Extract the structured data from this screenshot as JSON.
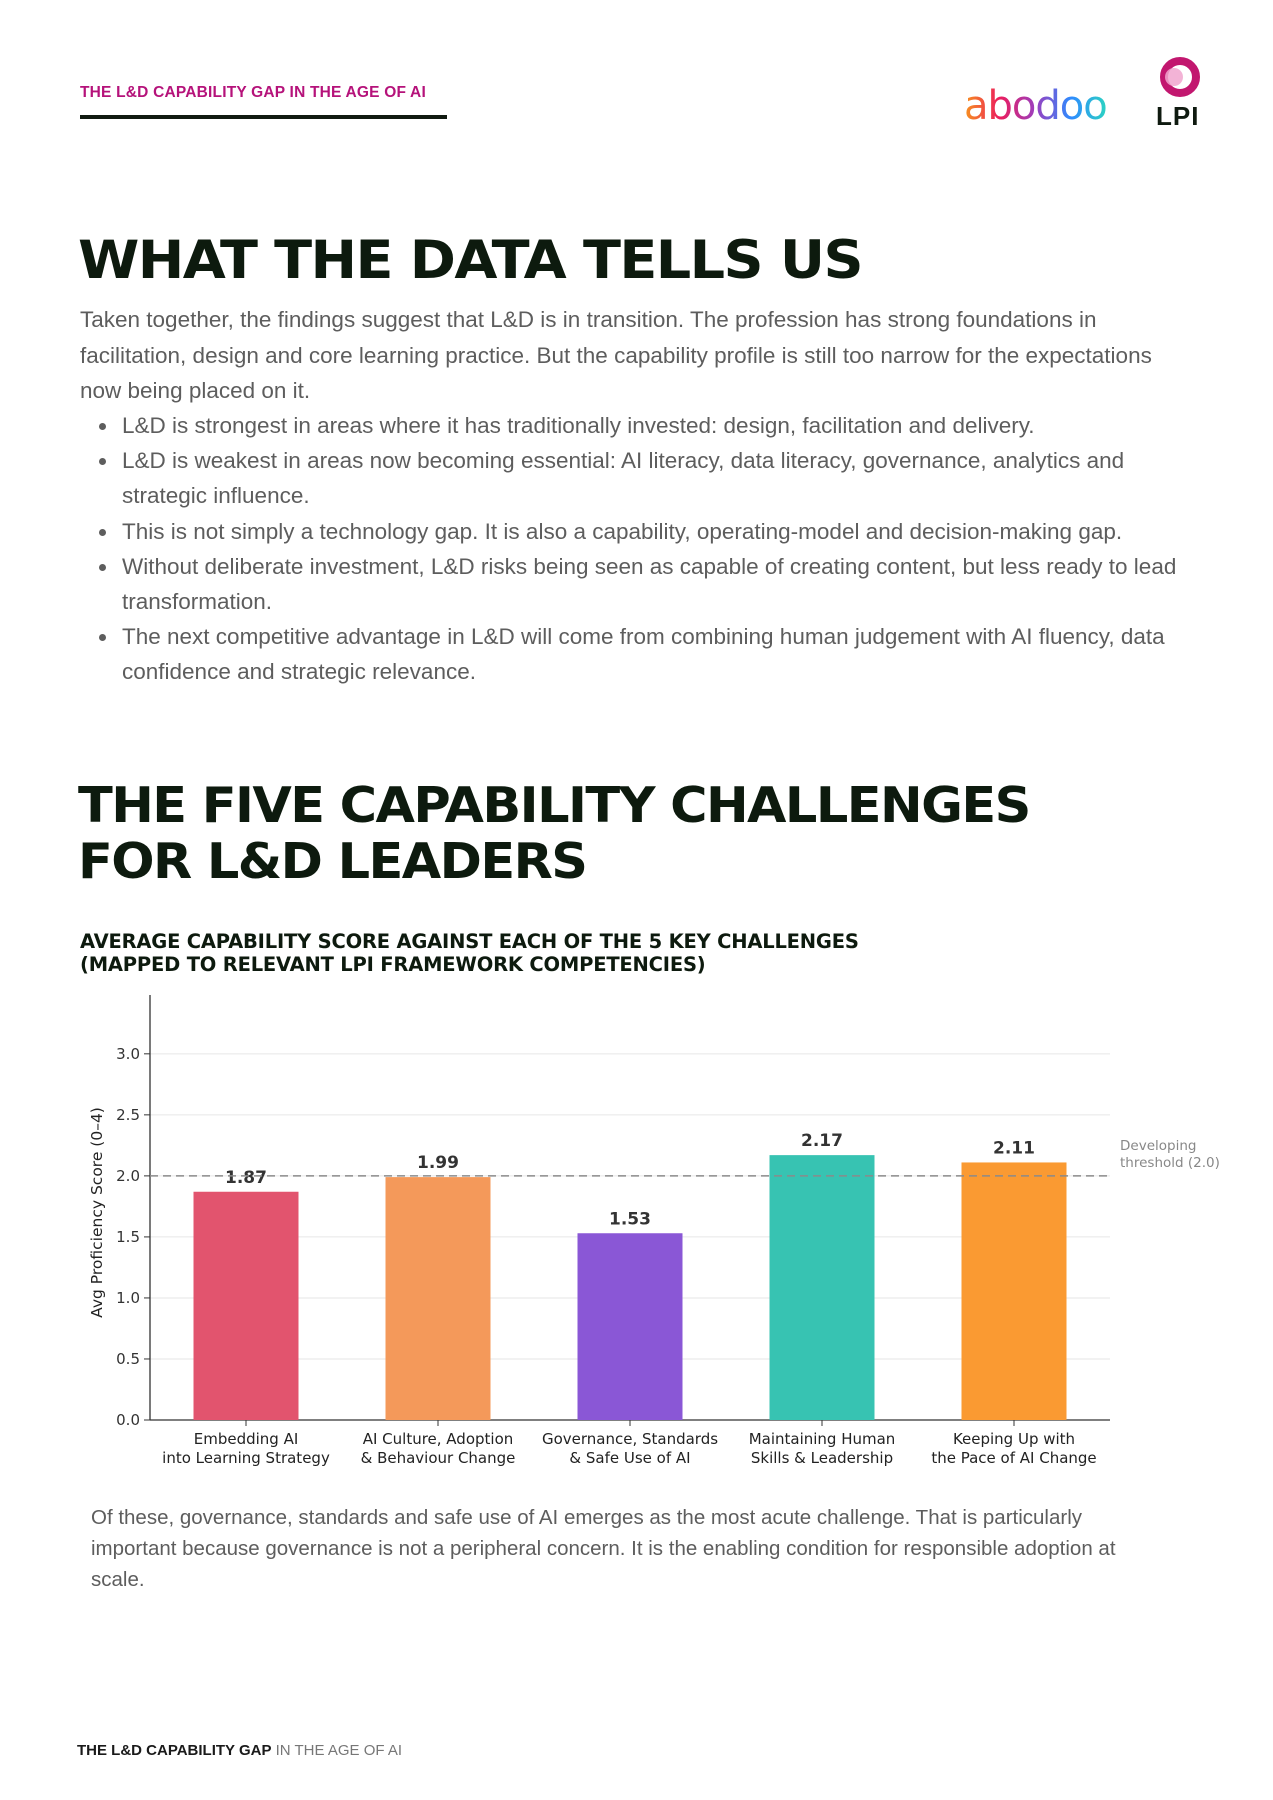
{
  "header": {
    "kicker": "THE L&D CAPABILITY GAP IN THE AGE OF AI",
    "logos": {
      "abodoo": "abodoo",
      "lpi": "LPI"
    }
  },
  "section1": {
    "title": "WHAT THE DATA TELLS US",
    "intro": "Taken together, the findings suggest that L&D is in transition. The profession has strong foundations in facilitation, design and core learning practice. But the capability profile is still too narrow for the expectations now being placed on it.",
    "bullets": [
      "L&D is strongest in areas where it has traditionally invested: design, facilitation and delivery.",
      "L&D is weakest in areas now becoming essential: AI literacy, data literacy, governance, analytics and strategic influence.",
      "This is not simply a technology gap. It is also a capability, operating-model and decision-making gap.",
      "Without deliberate investment, L&D risks being seen as capable of creating content, but less ready to lead transformation.",
      "The next competitive advantage in L&D will come from combining human judgement with AI fluency, data confidence and strategic relevance."
    ]
  },
  "section2": {
    "title_line1": "THE FIVE CAPABILITY CHALLENGES",
    "title_line2": "FOR L&D LEADERS",
    "chart_title_line1": "AVERAGE CAPABILITY SCORE AGAINST EACH OF THE 5 KEY CHALLENGES",
    "chart_title_line2": "(MAPPED TO RELEVANT LPI FRAMEWORK COMPETENCIES)",
    "outro": "Of these, governance, standards and safe use of AI emerges as the most acute challenge. That is particularly important because governance is not a peripheral concern. It is the enabling condition for responsible adoption at scale."
  },
  "footer": {
    "bold": "THE L&D CAPABILITY GAP",
    "rest": " IN THE AGE OF AI"
  },
  "colors": {
    "kicker": "#b5127a",
    "heading": "#0d1a0e",
    "body_text": "#5d5d5d",
    "bar1": "#e2546e",
    "bar2": "#f4995a",
    "bar3": "#8a57d6",
    "bar4": "#37c3b2",
    "bar5": "#fa9a32"
  },
  "chart_data": {
    "type": "bar",
    "categories": [
      [
        "Embedding AI",
        "into Learning Strategy"
      ],
      [
        "AI Culture, Adoption",
        "& Behaviour Change"
      ],
      [
        "Governance, Standards",
        "& Safe Use of AI"
      ],
      [
        "Maintaining Human",
        "Skills & Leadership"
      ],
      [
        "Keeping Up with",
        "the Pace of AI Change"
      ]
    ],
    "values": [
      1.87,
      1.99,
      1.53,
      2.17,
      2.11
    ],
    "value_labels": [
      "1.87",
      "1.99",
      "1.53",
      "2.17",
      "2.11"
    ],
    "colors": [
      "#e2546e",
      "#f4995a",
      "#8a57d6",
      "#37c3b2",
      "#fa9a32"
    ],
    "ylabel": "Avg Proficiency Score (0–4)",
    "xlabel": "",
    "ylim": [
      0,
      3.4
    ],
    "yticks": [
      0.0,
      0.5,
      1.0,
      1.5,
      2.0,
      2.5,
      3.0
    ],
    "ytick_labels": [
      "0.0",
      "0.5",
      "1.0",
      "1.5",
      "2.0",
      "2.5",
      "3.0"
    ],
    "threshold": {
      "value": 2.0,
      "label_line1": "Developing",
      "label_line2": "threshold (2.0)"
    },
    "grid": true
  }
}
